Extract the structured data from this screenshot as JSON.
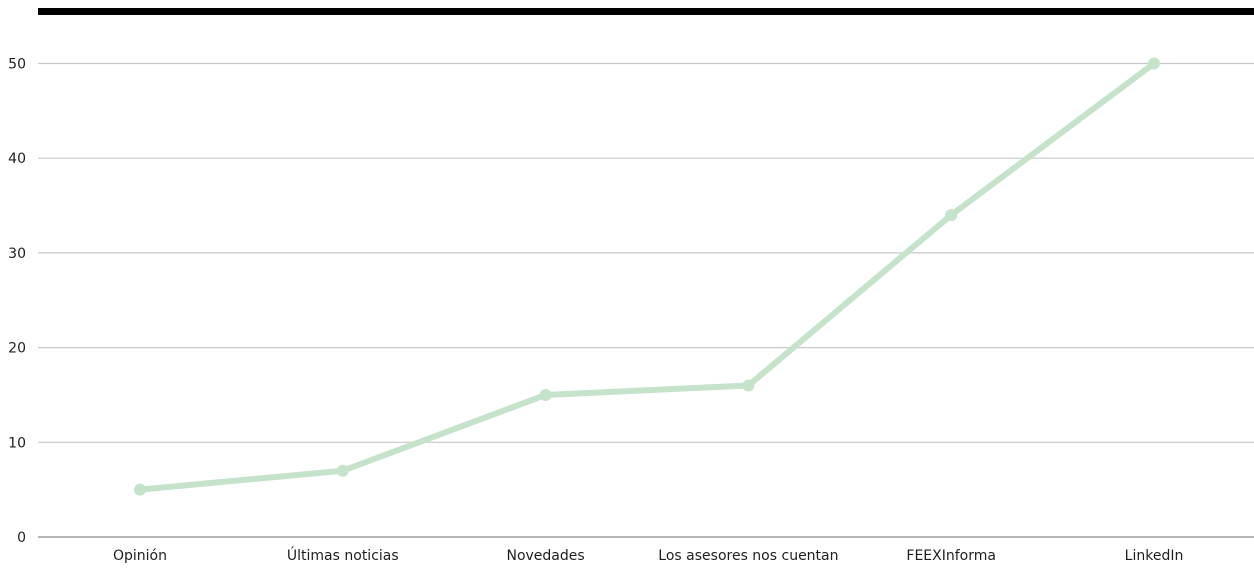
{
  "chart_data": {
    "type": "line",
    "title": "",
    "xlabel": "",
    "ylabel": "",
    "categories": [
      "Opinión",
      "Últimas noticias",
      "Novedades",
      "Los asesores nos cuentan",
      "FEEXInforma",
      "LinkedIn"
    ],
    "series": [
      {
        "values": [
          5,
          7,
          15,
          16,
          34,
          50
        ]
      }
    ],
    "ylim": [
      0,
      55
    ],
    "yticks": [
      0,
      10,
      20,
      30,
      40,
      50
    ],
    "grid": true,
    "legend": "none",
    "colors": {
      "line": "#c5e2cb",
      "grid": "#c8c8c8",
      "axis": "#8a8a8a",
      "top_bar": "#000000",
      "text": "#1f1f1f"
    }
  }
}
